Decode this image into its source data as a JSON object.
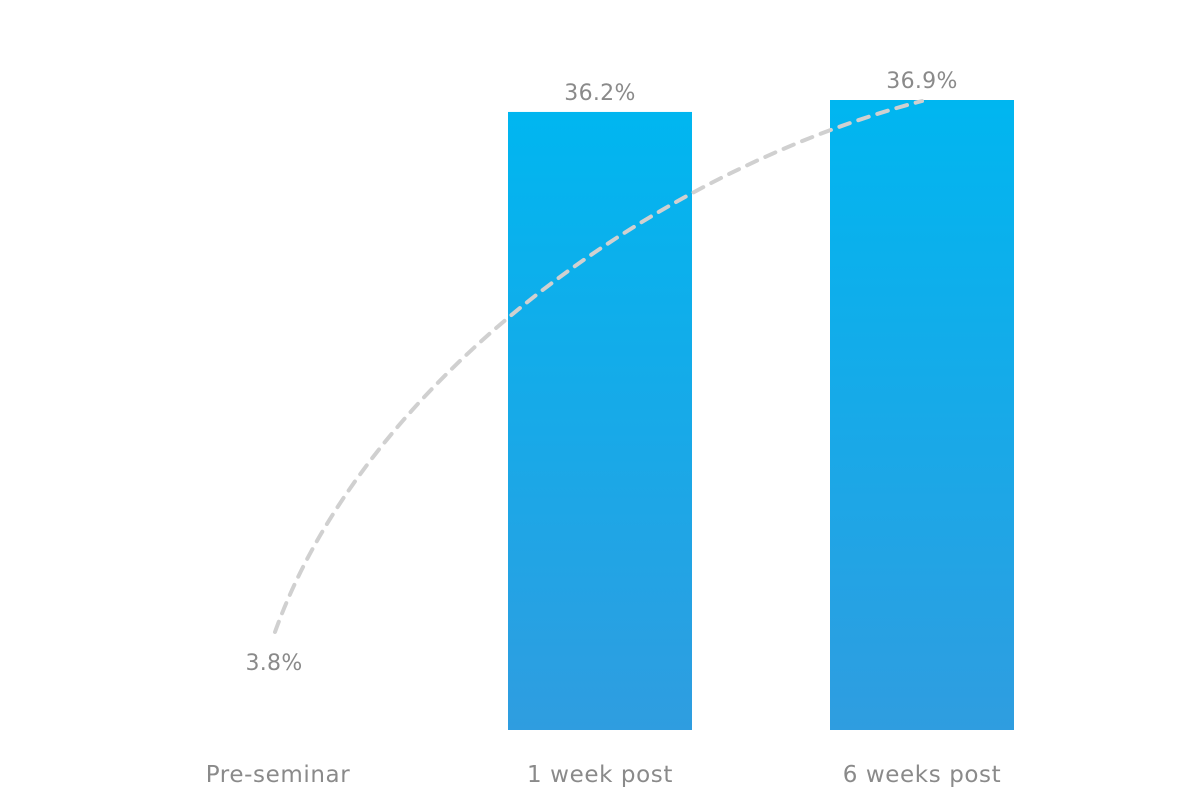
{
  "chart_data": {
    "type": "bar",
    "categories": [
      "Pre-seminar",
      "1 week post",
      "6 weeks post"
    ],
    "values": [
      3.8,
      36.2,
      36.9
    ],
    "value_labels": [
      "3.8%",
      "36.2%",
      "36.9%"
    ],
    "unit": "%",
    "title": "",
    "xlabel": "",
    "ylabel": "",
    "ylim": [
      0,
      40
    ],
    "grid": false,
    "legend": "none",
    "trend_line": "dashed",
    "colors": {
      "bar_top": "#00b6f0",
      "bar_bottom": "#2f9de0",
      "trend": "#d0d0d0",
      "text": "#8a8a8a"
    }
  }
}
